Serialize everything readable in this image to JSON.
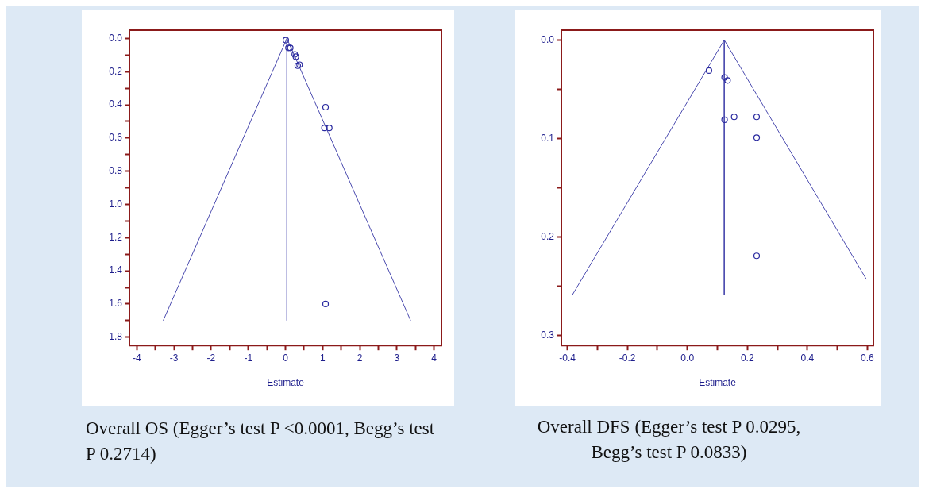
{
  "chart_data": [
    {
      "type": "scatter",
      "xlabel": "Estimate",
      "xlim": [
        -4.2,
        4.2
      ],
      "ylim": [
        1.85,
        -0.05
      ],
      "grid": false,
      "xticks": [
        -4,
        {
          "value": -3.5,
          "label": null
        },
        -3,
        {
          "value": -2.5,
          "label": null
        },
        -2,
        {
          "value": -1.5,
          "label": null
        },
        -1,
        {
          "value": -0.5,
          "label": null
        },
        0,
        {
          "value": 0.5,
          "label": null
        },
        1,
        {
          "value": 1.5,
          "label": null
        },
        2,
        {
          "value": 2.5,
          "label": null
        },
        3,
        {
          "value": 3.5,
          "label": null
        },
        4
      ],
      "yticks": [
        {
          "value": 0,
          "label": "0.0"
        },
        {
          "value": 0.1,
          "label": null
        },
        0.2,
        {
          "value": 0.3,
          "label": null
        },
        0.4,
        {
          "value": 0.5,
          "label": null
        },
        0.6,
        {
          "value": 0.7,
          "label": null
        },
        0.8,
        {
          "value": 0.9,
          "label": null
        },
        {
          "value": 1,
          "label": "1.0"
        },
        {
          "value": 1.1,
          "label": null
        },
        1.2,
        {
          "value": 1.3,
          "label": null
        },
        1.4,
        {
          "value": 1.5,
          "label": null
        },
        1.6,
        {
          "value": 1.7,
          "label": null
        },
        1.8
      ],
      "series": [
        {
          "type": "scatter",
          "color": "#2b2ba0",
          "marker": "circle",
          "x": [
            0.01,
            0.08,
            0.13,
            0.25,
            0.28,
            0.33,
            0.38,
            1.08,
            1.05,
            1.18,
            1.08
          ],
          "values": [
            0.01,
            0.057,
            0.057,
            0.096,
            0.11,
            0.164,
            0.158,
            0.414,
            0.539,
            0.539,
            1.6
          ]
        },
        {
          "type": "line",
          "color": "#4a4aae",
          "x": [
            -3.29,
            0.04,
            3.37
          ],
          "values": [
            1.7,
            0,
            1.7
          ]
        },
        {
          "type": "line",
          "color": "#4a4aae",
          "x": [
            0.04,
            0.04
          ],
          "values": [
            0,
            1.7
          ]
        }
      ],
      "annotations": [
        "Overall OS (Egger’s test P <0.0001, Begg’s test P 0.2714)"
      ]
    },
    {
      "type": "scatter",
      "xlabel": "Estimate",
      "xlim": [
        -0.42,
        0.62
      ],
      "ylim": [
        0.31,
        -0.01
      ],
      "grid": false,
      "xticks": [
        -0.4,
        {
          "value": -0.3,
          "label": null
        },
        -0.2,
        {
          "value": -0.1,
          "label": null
        },
        {
          "value": 0,
          "label": "0.0"
        },
        {
          "value": 0.1,
          "label": null
        },
        0.2,
        {
          "value": 0.3,
          "label": null
        },
        0.4,
        {
          "value": 0.5,
          "label": null
        },
        0.6
      ],
      "yticks": [
        {
          "value": 0,
          "label": "0.0"
        },
        {
          "value": 0.05,
          "label": null
        },
        0.1,
        {
          "value": 0.15,
          "label": null
        },
        0.2,
        {
          "value": 0.25,
          "label": null
        },
        0.3
      ],
      "series": [
        {
          "type": "scatter",
          "color": "#2b2ba0",
          "marker": "circle",
          "x": [
            0.072,
            0.124,
            0.134,
            0.124,
            0.156,
            0.231,
            0.231,
            0.231
          ],
          "values": [
            0.031,
            0.038,
            0.041,
            0.081,
            0.078,
            0.078,
            0.099,
            0.219
          ]
        },
        {
          "type": "line",
          "color": "#4a4aae",
          "x": [
            -0.384,
            0.123,
            0.597
          ],
          "values": [
            0.259,
            0,
            0.243
          ]
        },
        {
          "type": "line",
          "color": "#4a4aae",
          "x": [
            0.123,
            0.123
          ],
          "values": [
            0,
            0.259
          ]
        }
      ],
      "annotations": [
        "Overall DFS (Egger’s test P 0.0295, Begg’s test P 0.0833)"
      ]
    }
  ]
}
